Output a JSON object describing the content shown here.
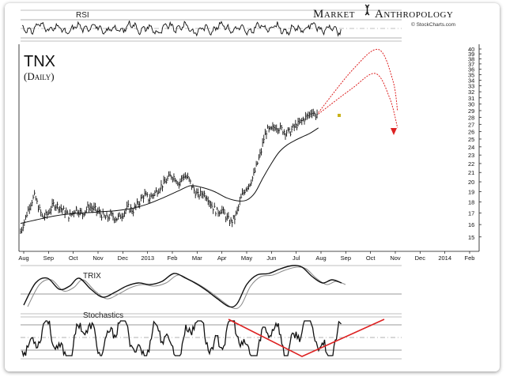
{
  "brand": {
    "market": "Market",
    "anthropology": "Anthropology",
    "source": "© StockCharts.com"
  },
  "chart_data": {
    "type": "line",
    "title": "TNX",
    "subtitle": "(Daily)",
    "x_ticks": [
      "Aug",
      "Sep",
      "Oct",
      "Nov",
      "Dec",
      "2013",
      "Feb",
      "Mar",
      "Apr",
      "May",
      "Jun",
      "Jul",
      "Aug",
      "Sep",
      "Oct",
      "Nov",
      "Dec",
      "2014",
      "Feb"
    ],
    "y_ticks": [
      15,
      16,
      17,
      18,
      19,
      20,
      21,
      22,
      23,
      24,
      25,
      26,
      27,
      28,
      29,
      30,
      31,
      32,
      33,
      34,
      35,
      36,
      37,
      38,
      39,
      40
    ],
    "ylim": [
      14.5,
      40
    ],
    "log_scale": true,
    "grid": false,
    "series": [
      {
        "values": [
          [
            0,
            15.4
          ],
          [
            6,
            16.5
          ],
          [
            12,
            17.8
          ],
          [
            18,
            18.6
          ],
          [
            22,
            17.6
          ],
          [
            28,
            16.6
          ],
          [
            34,
            16.9
          ],
          [
            42,
            17.8
          ],
          [
            48,
            17.6
          ],
          [
            56,
            17.1
          ],
          [
            62,
            16.7
          ],
          [
            70,
            17.4
          ],
          [
            78,
            16.9
          ],
          [
            86,
            17.6
          ],
          [
            94,
            17.3
          ],
          [
            102,
            16.9
          ],
          [
            108,
            16.5
          ],
          [
            114,
            16.8
          ],
          [
            122,
            16.5
          ],
          [
            130,
            17.0
          ],
          [
            136,
            17.5
          ],
          [
            142,
            17.2
          ],
          [
            150,
            18.0
          ],
          [
            156,
            18.7
          ],
          [
            162,
            18.3
          ],
          [
            170,
            18.9
          ],
          [
            178,
            19.6
          ],
          [
            184,
            20.1
          ],
          [
            190,
            20.7
          ],
          [
            196,
            20.4
          ],
          [
            200,
            19.8
          ],
          [
            206,
            20.7
          ],
          [
            212,
            20.3
          ],
          [
            218,
            19.3
          ],
          [
            224,
            18.6
          ],
          [
            230,
            18.9
          ],
          [
            236,
            18.5
          ],
          [
            242,
            17.6
          ],
          [
            248,
            17.1
          ],
          [
            254,
            17.3
          ],
          [
            260,
            16.6
          ],
          [
            265,
            16.2
          ],
          [
            270,
            16.5
          ],
          [
            274,
            17.2
          ],
          [
            279,
            18.5
          ],
          [
            284,
            19.3
          ],
          [
            289,
            19.8
          ],
          [
            294,
            20.6
          ],
          [
            299,
            22.0
          ],
          [
            304,
            23.5
          ],
          [
            307,
            25.0
          ],
          [
            311,
            26.2
          ],
          [
            316,
            26.1
          ],
          [
            322,
            26.8
          ],
          [
            328,
            26.4
          ],
          [
            334,
            26.0
          ],
          [
            340,
            25.9
          ],
          [
            346,
            26.7
          ],
          [
            352,
            27.1
          ],
          [
            358,
            27.8
          ],
          [
            364,
            28.3
          ],
          [
            368,
            29.0
          ],
          [
            372,
            28.3
          ],
          [
            376,
            28.6
          ]
        ]
      },
      {
        "name": "moving average",
        "values": [
          [
            0,
            16.1
          ],
          [
            20,
            16.4
          ],
          [
            40,
            16.7
          ],
          [
            60,
            16.9
          ],
          [
            80,
            17.0
          ],
          [
            100,
            17.1
          ],
          [
            120,
            17.2
          ],
          [
            140,
            17.4
          ],
          [
            160,
            17.8
          ],
          [
            180,
            18.4
          ],
          [
            200,
            19.1
          ],
          [
            215,
            19.6
          ],
          [
            230,
            19.4
          ],
          [
            245,
            19.0
          ],
          [
            260,
            18.4
          ],
          [
            275,
            18.1
          ],
          [
            286,
            18.2
          ],
          [
            296,
            18.9
          ],
          [
            306,
            20.4
          ],
          [
            316,
            21.9
          ],
          [
            326,
            23.3
          ],
          [
            336,
            24.2
          ],
          [
            346,
            24.8
          ],
          [
            356,
            25.3
          ],
          [
            366,
            25.8
          ],
          [
            376,
            26.5
          ]
        ]
      },
      {
        "name": "projection upper",
        "values": [
          [
            376,
            28.7
          ],
          [
            420,
            36.0
          ],
          [
            452,
            39.9
          ],
          [
            470,
            34.0
          ],
          [
            476,
            29.0
          ]
        ]
      },
      {
        "name": "projection lower",
        "values": [
          [
            376,
            28.5
          ],
          [
            418,
            32.5
          ],
          [
            448,
            35.2
          ],
          [
            466,
            31.0
          ],
          [
            476,
            26.5
          ]
        ]
      }
    ],
    "panels": {
      "rsi": {
        "label": "RSI"
      },
      "trix": {
        "label": "TRIX"
      },
      "stochastics": {
        "label": "Stochastics"
      }
    }
  }
}
